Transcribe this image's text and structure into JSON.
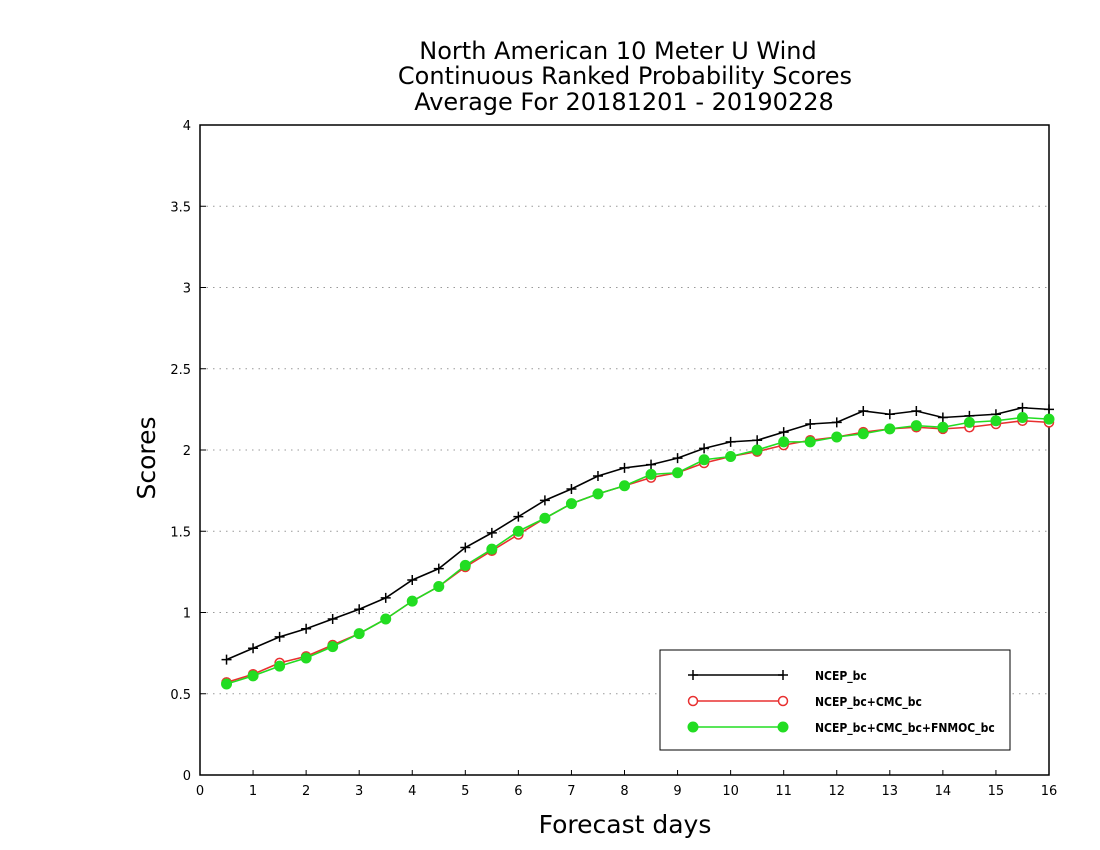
{
  "chart_data": {
    "type": "line",
    "title": [
      "North American 10 Meter U Wind",
      "Continuous Ranked Probability Scores",
      "Average For 20181201 - 20190228"
    ],
    "xlabel": "Forecast days",
    "ylabel": "Scores",
    "xlim": [
      0,
      16
    ],
    "ylim": [
      0,
      4
    ],
    "xticks": [
      0,
      1,
      2,
      3,
      4,
      5,
      6,
      7,
      8,
      9,
      10,
      11,
      12,
      13,
      14,
      15,
      16
    ],
    "yticks": [
      0,
      0.5,
      1,
      1.5,
      2,
      2.5,
      3,
      3.5,
      4
    ],
    "ytick_labels": [
      "0",
      "0.5",
      "1",
      "1.5",
      "2",
      "2.5",
      "3",
      "3.5",
      "4"
    ],
    "grid": "horizontal dotted",
    "legend_position": "bottom-right",
    "x": [
      0.5,
      1,
      1.5,
      2,
      2.5,
      3,
      3.5,
      4,
      4.5,
      5,
      5.5,
      6,
      6.5,
      7,
      7.5,
      8,
      8.5,
      9,
      9.5,
      10,
      10.5,
      11,
      11.5,
      12,
      12.5,
      13,
      13.5,
      14,
      14.5,
      15,
      15.5,
      16
    ],
    "series": [
      {
        "name": "NCEP_bc",
        "color": "#000000",
        "marker": "plus",
        "values": [
          0.71,
          0.78,
          0.85,
          0.9,
          0.96,
          1.02,
          1.09,
          1.2,
          1.27,
          1.4,
          1.49,
          1.59,
          1.69,
          1.76,
          1.84,
          1.89,
          1.91,
          1.95,
          2.01,
          2.05,
          2.06,
          2.11,
          2.16,
          2.17,
          2.24,
          2.22,
          2.24,
          2.2,
          2.21,
          2.22,
          2.26,
          2.25
        ]
      },
      {
        "name": "NCEP_bc+CMC_bc",
        "color": "#e83030",
        "marker": "open-circle",
        "values": [
          0.57,
          0.62,
          0.69,
          0.73,
          0.8,
          0.87,
          0.96,
          1.07,
          1.16,
          1.28,
          1.38,
          1.48,
          1.58,
          1.67,
          1.73,
          1.78,
          1.83,
          1.86,
          1.92,
          1.96,
          1.99,
          2.03,
          2.06,
          2.08,
          2.11,
          2.13,
          2.14,
          2.13,
          2.14,
          2.16,
          2.18,
          2.17
        ]
      },
      {
        "name": "NCEP_bc+CMC_bc+FNMOC_bc",
        "color": "#22dd22",
        "marker": "filled-circle",
        "values": [
          0.56,
          0.61,
          0.67,
          0.72,
          0.79,
          0.87,
          0.96,
          1.07,
          1.16,
          1.29,
          1.39,
          1.5,
          1.58,
          1.67,
          1.73,
          1.78,
          1.85,
          1.86,
          1.94,
          1.96,
          2.0,
          2.05,
          2.05,
          2.08,
          2.1,
          2.13,
          2.15,
          2.14,
          2.17,
          2.18,
          2.2,
          2.19
        ]
      }
    ]
  }
}
